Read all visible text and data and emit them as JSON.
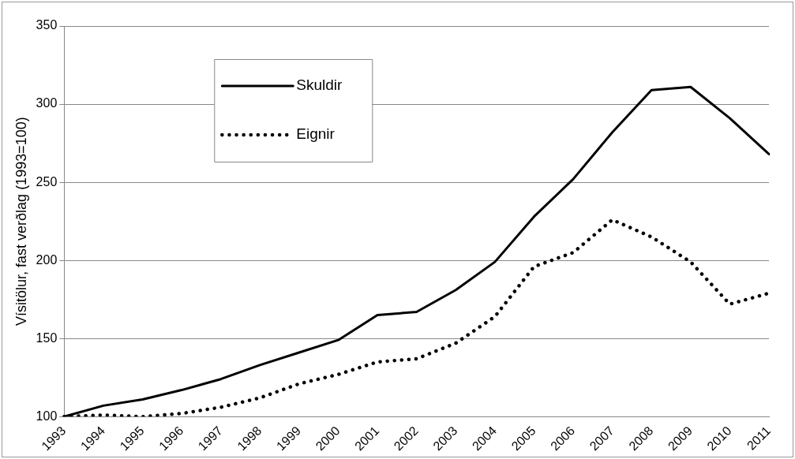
{
  "chart_data": {
    "type": "line",
    "ylabel": "Vísitölur, fast verðlag (1993=100)",
    "categories": [
      "1993",
      "1994",
      "1995",
      "1996",
      "1997",
      "1998",
      "1999",
      "2000",
      "2001",
      "2002",
      "2003",
      "2004",
      "2005",
      "2006",
      "2007",
      "2008",
      "2009",
      "2010",
      "2011"
    ],
    "series": [
      {
        "name": "Skuldir",
        "color": "#000000",
        "line_style": "solid",
        "values": [
          100,
          107,
          111,
          117,
          124,
          133,
          141,
          149,
          165,
          167,
          181,
          199,
          228,
          252,
          282,
          309,
          311,
          291,
          268
        ]
      },
      {
        "name": "Eignir",
        "color": "#000000",
        "line_style": "dotted",
        "values": [
          100,
          101,
          100,
          102,
          106,
          112,
          121,
          127,
          135,
          137,
          147,
          164,
          196,
          205,
          226,
          215,
          199,
          172,
          179
        ]
      }
    ],
    "ylim": [
      100,
      350
    ],
    "yticks": [
      100,
      150,
      200,
      250,
      300,
      350
    ],
    "grid": "y",
    "legend": "top left",
    "marker": "none"
  }
}
